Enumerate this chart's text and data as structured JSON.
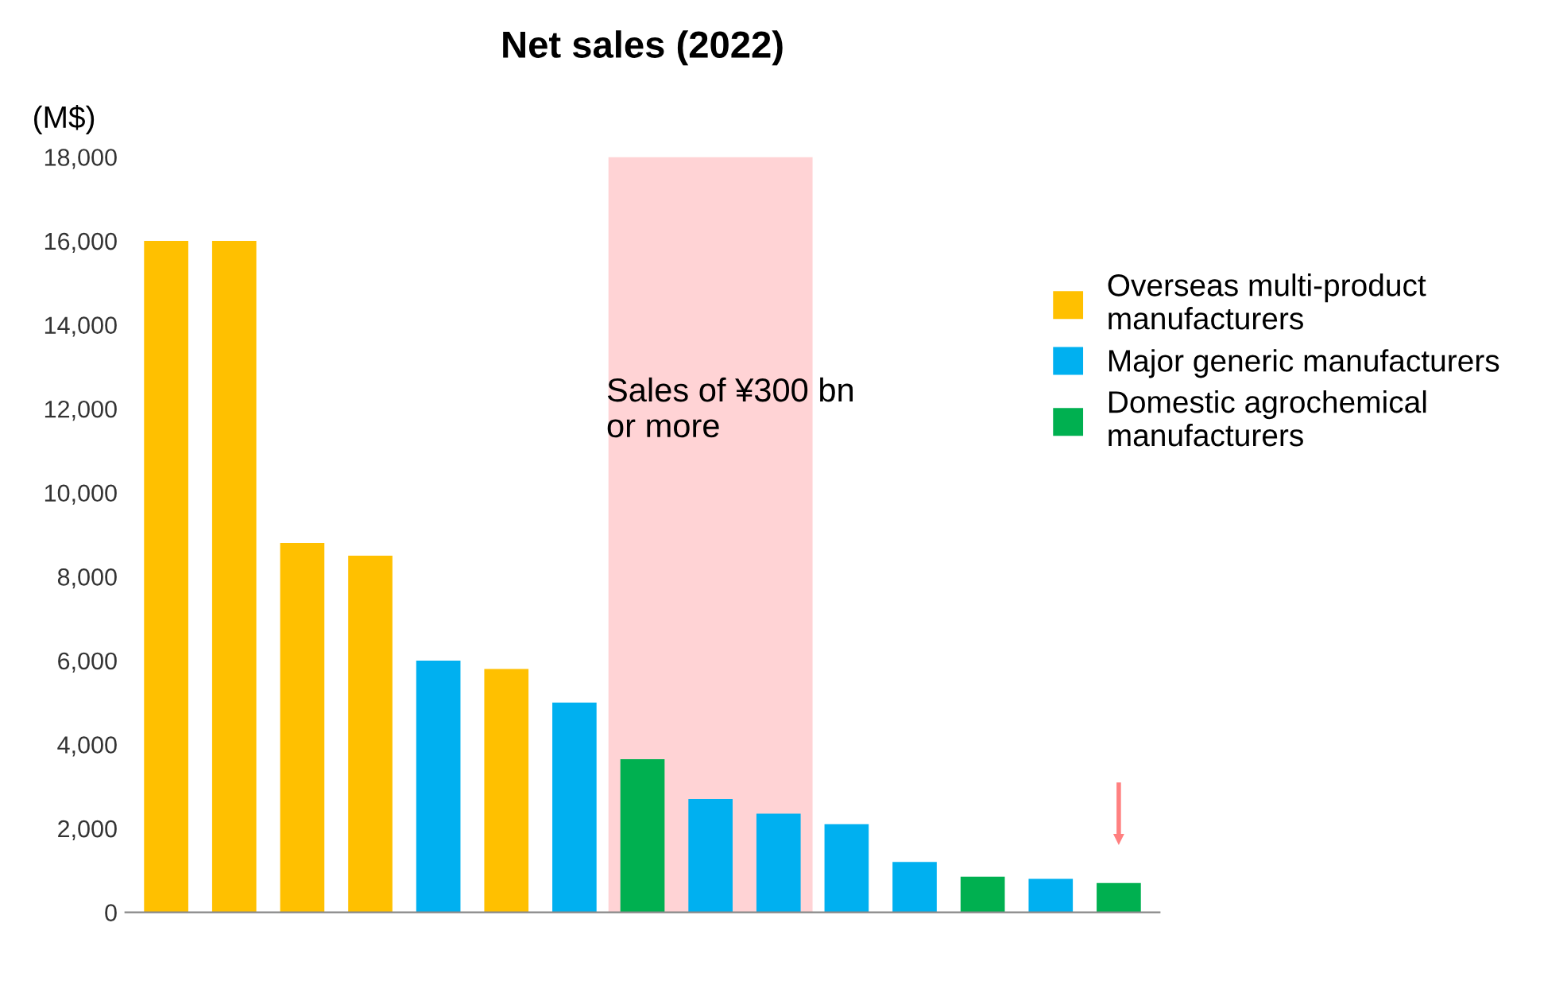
{
  "chart_data": {
    "type": "bar",
    "title": "Net sales (2022)",
    "ylabel": "(M$)",
    "categories": [
      null,
      null,
      null,
      null,
      null,
      null,
      null,
      null,
      null,
      null,
      null,
      null,
      null,
      null,
      null
    ],
    "series": [
      {
        "name": "Overseas multi-product manufacturers",
        "color": "#ffc000",
        "values": [
          16000,
          16000,
          8800,
          8500,
          null,
          5800,
          null,
          null,
          null,
          null,
          null,
          null,
          null,
          null,
          null
        ]
      },
      {
        "name": "Major generic manufacturers",
        "color": "#00b0f0",
        "values": [
          null,
          null,
          null,
          null,
          6000,
          null,
          5000,
          null,
          2700,
          2350,
          2100,
          1200,
          null,
          800,
          null
        ]
      },
      {
        "name": "Domestic agrochemical manufacturers",
        "color": "#00b050",
        "values": [
          null,
          null,
          null,
          null,
          null,
          null,
          null,
          3650,
          null,
          null,
          null,
          null,
          850,
          null,
          700
        ]
      }
    ],
    "ylim": [
      0,
      18000
    ],
    "yticks": [
      0,
      {
        "value": 2000,
        "label": "2,000"
      },
      {
        "value": 4000,
        "label": "4,000"
      },
      {
        "value": 6000,
        "label": "6,000"
      },
      {
        "value": 8000,
        "label": "8,000"
      },
      {
        "value": 10000,
        "label": "10,000"
      },
      {
        "value": 12000,
        "label": "12,000"
      },
      {
        "value": 14000,
        "label": "14,000"
      },
      {
        "value": 16000,
        "label": "16,000"
      },
      {
        "value": 18000,
        "label": "18,000"
      }
    ],
    "annotations": [
      "Sales of ¥300 bn\nor more"
    ],
    "legend": "right",
    "grid": false
  }
}
